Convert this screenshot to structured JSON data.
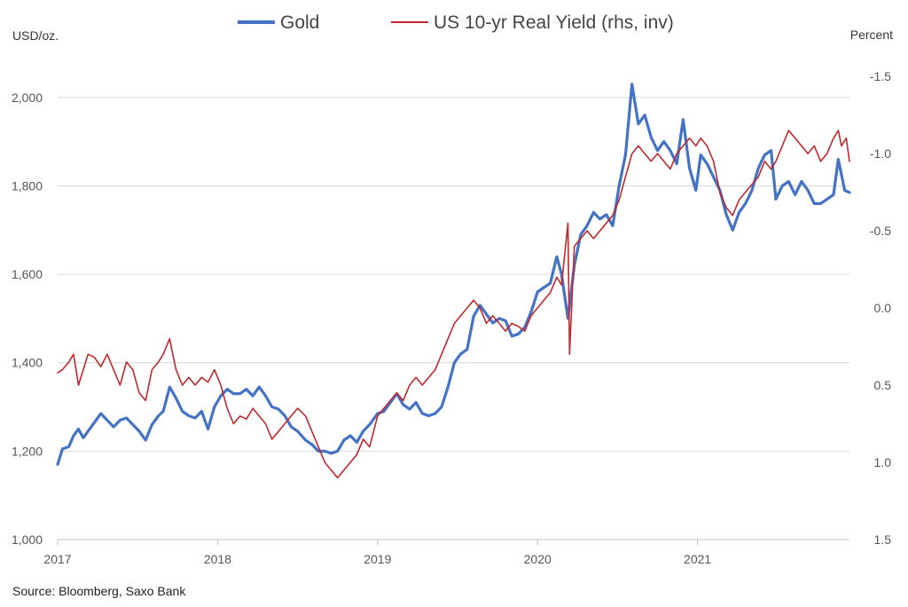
{
  "chart_data": {
    "type": "line",
    "title": "",
    "left_axis": {
      "label": "USD/oz.",
      "min": 1000,
      "max": 2100,
      "ticks": [
        "1,000",
        "1,200",
        "1,400",
        "1,600",
        "1,800",
        "2,000"
      ]
    },
    "right_axis": {
      "label": "Percent",
      "inverted": true,
      "min": -1.65,
      "max": 1.5,
      "ticks": [
        "-1.5",
        "-1.0",
        "-0.5",
        "0.0",
        "0.5",
        "1.0",
        "1.5"
      ]
    },
    "x_axis": {
      "min": 2017.0,
      "max": 2021.95,
      "ticks": [
        "2017",
        "2018",
        "2019",
        "2020",
        "2021"
      ]
    },
    "grid": true,
    "legend_position": "top-center",
    "source": "Source: Bloomberg, Saxo Bank",
    "series": [
      {
        "name": "Gold",
        "axis": "left",
        "color": "#4472c4",
        "points": [
          [
            2017.0,
            1170
          ],
          [
            2017.03,
            1205
          ],
          [
            2017.07,
            1210
          ],
          [
            2017.1,
            1235
          ],
          [
            2017.13,
            1250
          ],
          [
            2017.16,
            1230
          ],
          [
            2017.19,
            1245
          ],
          [
            2017.23,
            1265
          ],
          [
            2017.27,
            1285
          ],
          [
            2017.31,
            1270
          ],
          [
            2017.35,
            1255
          ],
          [
            2017.39,
            1270
          ],
          [
            2017.43,
            1275
          ],
          [
            2017.47,
            1260
          ],
          [
            2017.51,
            1245
          ],
          [
            2017.55,
            1225
          ],
          [
            2017.59,
            1260
          ],
          [
            2017.63,
            1280
          ],
          [
            2017.66,
            1290
          ],
          [
            2017.7,
            1345
          ],
          [
            2017.74,
            1320
          ],
          [
            2017.78,
            1290
          ],
          [
            2017.82,
            1280
          ],
          [
            2017.86,
            1275
          ],
          [
            2017.9,
            1290
          ],
          [
            2017.94,
            1250
          ],
          [
            2017.98,
            1300
          ],
          [
            2018.02,
            1325
          ],
          [
            2018.06,
            1340
          ],
          [
            2018.1,
            1330
          ],
          [
            2018.14,
            1330
          ],
          [
            2018.18,
            1340
          ],
          [
            2018.22,
            1325
          ],
          [
            2018.26,
            1345
          ],
          [
            2018.3,
            1325
          ],
          [
            2018.34,
            1300
          ],
          [
            2018.38,
            1295
          ],
          [
            2018.42,
            1280
          ],
          [
            2018.46,
            1255
          ],
          [
            2018.5,
            1245
          ],
          [
            2018.55,
            1225
          ],
          [
            2018.59,
            1215
          ],
          [
            2018.63,
            1200
          ],
          [
            2018.67,
            1200
          ],
          [
            2018.71,
            1195
          ],
          [
            2018.75,
            1200
          ],
          [
            2018.79,
            1225
          ],
          [
            2018.83,
            1235
          ],
          [
            2018.87,
            1220
          ],
          [
            2018.91,
            1245
          ],
          [
            2018.95,
            1260
          ],
          [
            2019.0,
            1285
          ],
          [
            2019.04,
            1290
          ],
          [
            2019.08,
            1310
          ],
          [
            2019.12,
            1330
          ],
          [
            2019.16,
            1305
          ],
          [
            2019.2,
            1295
          ],
          [
            2019.24,
            1310
          ],
          [
            2019.28,
            1285
          ],
          [
            2019.32,
            1280
          ],
          [
            2019.36,
            1285
          ],
          [
            2019.4,
            1300
          ],
          [
            2019.44,
            1345
          ],
          [
            2019.48,
            1400
          ],
          [
            2019.52,
            1420
          ],
          [
            2019.56,
            1430
          ],
          [
            2019.6,
            1505
          ],
          [
            2019.64,
            1530
          ],
          [
            2019.68,
            1510
          ],
          [
            2019.72,
            1490
          ],
          [
            2019.76,
            1500
          ],
          [
            2019.8,
            1495
          ],
          [
            2019.84,
            1460
          ],
          [
            2019.88,
            1465
          ],
          [
            2019.92,
            1480
          ],
          [
            2019.96,
            1515
          ],
          [
            2020.0,
            1560
          ],
          [
            2020.04,
            1570
          ],
          [
            2020.08,
            1580
          ],
          [
            2020.12,
            1640
          ],
          [
            2020.15,
            1600
          ],
          [
            2020.19,
            1500
          ],
          [
            2020.23,
            1620
          ],
          [
            2020.27,
            1690
          ],
          [
            2020.31,
            1710
          ],
          [
            2020.35,
            1740
          ],
          [
            2020.39,
            1725
          ],
          [
            2020.43,
            1735
          ],
          [
            2020.47,
            1710
          ],
          [
            2020.51,
            1800
          ],
          [
            2020.55,
            1870
          ],
          [
            2020.59,
            2030
          ],
          [
            2020.63,
            1940
          ],
          [
            2020.67,
            1960
          ],
          [
            2020.71,
            1910
          ],
          [
            2020.75,
            1880
          ],
          [
            2020.79,
            1900
          ],
          [
            2020.83,
            1880
          ],
          [
            2020.87,
            1850
          ],
          [
            2020.91,
            1950
          ],
          [
            2020.95,
            1840
          ],
          [
            2020.99,
            1790
          ],
          [
            2021.02,
            1870
          ],
          [
            2021.06,
            1850
          ],
          [
            2021.1,
            1820
          ],
          [
            2021.14,
            1790
          ],
          [
            2021.18,
            1735
          ],
          [
            2021.22,
            1700
          ],
          [
            2021.26,
            1740
          ],
          [
            2021.3,
            1760
          ],
          [
            2021.34,
            1790
          ],
          [
            2021.38,
            1840
          ],
          [
            2021.42,
            1870
          ],
          [
            2021.46,
            1880
          ],
          [
            2021.49,
            1770
          ],
          [
            2021.53,
            1800
          ],
          [
            2021.57,
            1810
          ],
          [
            2021.61,
            1780
          ],
          [
            2021.65,
            1810
          ],
          [
            2021.69,
            1790
          ],
          [
            2021.73,
            1760
          ],
          [
            2021.77,
            1760
          ],
          [
            2021.81,
            1770
          ],
          [
            2021.85,
            1780
          ],
          [
            2021.88,
            1860
          ],
          [
            2021.92,
            1790
          ],
          [
            2021.95,
            1785
          ]
        ]
      },
      {
        "name": "US 10-yr Real Yield (rhs, inv)",
        "axis": "right",
        "color": "#c0282d",
        "points": [
          [
            2017.0,
            0.42
          ],
          [
            2017.03,
            0.4
          ],
          [
            2017.07,
            0.35
          ],
          [
            2017.1,
            0.3
          ],
          [
            2017.13,
            0.5
          ],
          [
            2017.16,
            0.4
          ],
          [
            2017.19,
            0.3
          ],
          [
            2017.23,
            0.32
          ],
          [
            2017.27,
            0.38
          ],
          [
            2017.31,
            0.3
          ],
          [
            2017.35,
            0.4
          ],
          [
            2017.39,
            0.5
          ],
          [
            2017.43,
            0.35
          ],
          [
            2017.47,
            0.4
          ],
          [
            2017.51,
            0.55
          ],
          [
            2017.55,
            0.6
          ],
          [
            2017.59,
            0.4
          ],
          [
            2017.63,
            0.35
          ],
          [
            2017.66,
            0.3
          ],
          [
            2017.7,
            0.2
          ],
          [
            2017.74,
            0.4
          ],
          [
            2017.78,
            0.5
          ],
          [
            2017.82,
            0.45
          ],
          [
            2017.86,
            0.5
          ],
          [
            2017.9,
            0.45
          ],
          [
            2017.94,
            0.48
          ],
          [
            2017.98,
            0.4
          ],
          [
            2018.02,
            0.5
          ],
          [
            2018.06,
            0.65
          ],
          [
            2018.1,
            0.75
          ],
          [
            2018.14,
            0.7
          ],
          [
            2018.18,
            0.72
          ],
          [
            2018.22,
            0.65
          ],
          [
            2018.26,
            0.7
          ],
          [
            2018.3,
            0.75
          ],
          [
            2018.34,
            0.85
          ],
          [
            2018.38,
            0.8
          ],
          [
            2018.42,
            0.75
          ],
          [
            2018.46,
            0.7
          ],
          [
            2018.5,
            0.65
          ],
          [
            2018.55,
            0.7
          ],
          [
            2018.59,
            0.8
          ],
          [
            2018.63,
            0.9
          ],
          [
            2018.67,
            1.0
          ],
          [
            2018.71,
            1.05
          ],
          [
            2018.75,
            1.1
          ],
          [
            2018.79,
            1.05
          ],
          [
            2018.83,
            1.0
          ],
          [
            2018.87,
            0.95
          ],
          [
            2018.91,
            0.85
          ],
          [
            2018.95,
            0.9
          ],
          [
            2019.0,
            0.7
          ],
          [
            2019.04,
            0.65
          ],
          [
            2019.08,
            0.6
          ],
          [
            2019.12,
            0.55
          ],
          [
            2019.16,
            0.6
          ],
          [
            2019.2,
            0.5
          ],
          [
            2019.24,
            0.45
          ],
          [
            2019.28,
            0.5
          ],
          [
            2019.32,
            0.45
          ],
          [
            2019.36,
            0.4
          ],
          [
            2019.4,
            0.3
          ],
          [
            2019.44,
            0.2
          ],
          [
            2019.48,
            0.1
          ],
          [
            2019.52,
            0.05
          ],
          [
            2019.56,
            0.0
          ],
          [
            2019.6,
            -0.05
          ],
          [
            2019.64,
            0.0
          ],
          [
            2019.68,
            0.1
          ],
          [
            2019.72,
            0.05
          ],
          [
            2019.76,
            0.1
          ],
          [
            2019.8,
            0.15
          ],
          [
            2019.84,
            0.1
          ],
          [
            2019.88,
            0.12
          ],
          [
            2019.92,
            0.15
          ],
          [
            2019.96,
            0.05
          ],
          [
            2020.0,
            0.0
          ],
          [
            2020.04,
            -0.05
          ],
          [
            2020.08,
            -0.1
          ],
          [
            2020.12,
            -0.2
          ],
          [
            2020.15,
            -0.15
          ],
          [
            2020.19,
            -0.55
          ],
          [
            2020.2,
            0.3
          ],
          [
            2020.23,
            -0.4
          ],
          [
            2020.27,
            -0.45
          ],
          [
            2020.31,
            -0.5
          ],
          [
            2020.35,
            -0.45
          ],
          [
            2020.39,
            -0.5
          ],
          [
            2020.43,
            -0.55
          ],
          [
            2020.47,
            -0.6
          ],
          [
            2020.51,
            -0.7
          ],
          [
            2020.55,
            -0.85
          ],
          [
            2020.59,
            -1.0
          ],
          [
            2020.63,
            -1.05
          ],
          [
            2020.67,
            -1.0
          ],
          [
            2020.71,
            -0.95
          ],
          [
            2020.75,
            -1.0
          ],
          [
            2020.79,
            -0.95
          ],
          [
            2020.83,
            -0.9
          ],
          [
            2020.87,
            -1.0
          ],
          [
            2020.91,
            -1.05
          ],
          [
            2020.95,
            -1.1
          ],
          [
            2020.99,
            -1.05
          ],
          [
            2021.02,
            -1.1
          ],
          [
            2021.06,
            -1.05
          ],
          [
            2021.1,
            -0.95
          ],
          [
            2021.14,
            -0.75
          ],
          [
            2021.18,
            -0.65
          ],
          [
            2021.22,
            -0.6
          ],
          [
            2021.26,
            -0.7
          ],
          [
            2021.3,
            -0.75
          ],
          [
            2021.34,
            -0.8
          ],
          [
            2021.38,
            -0.85
          ],
          [
            2021.42,
            -0.95
          ],
          [
            2021.46,
            -0.9
          ],
          [
            2021.49,
            -0.95
          ],
          [
            2021.53,
            -1.05
          ],
          [
            2021.57,
            -1.15
          ],
          [
            2021.61,
            -1.1
          ],
          [
            2021.65,
            -1.05
          ],
          [
            2021.69,
            -1.0
          ],
          [
            2021.73,
            -1.05
          ],
          [
            2021.77,
            -0.95
          ],
          [
            2021.81,
            -1.0
          ],
          [
            2021.85,
            -1.1
          ],
          [
            2021.88,
            -1.15
          ],
          [
            2021.9,
            -1.05
          ],
          [
            2021.93,
            -1.1
          ],
          [
            2021.95,
            -0.95
          ]
        ]
      }
    ]
  }
}
